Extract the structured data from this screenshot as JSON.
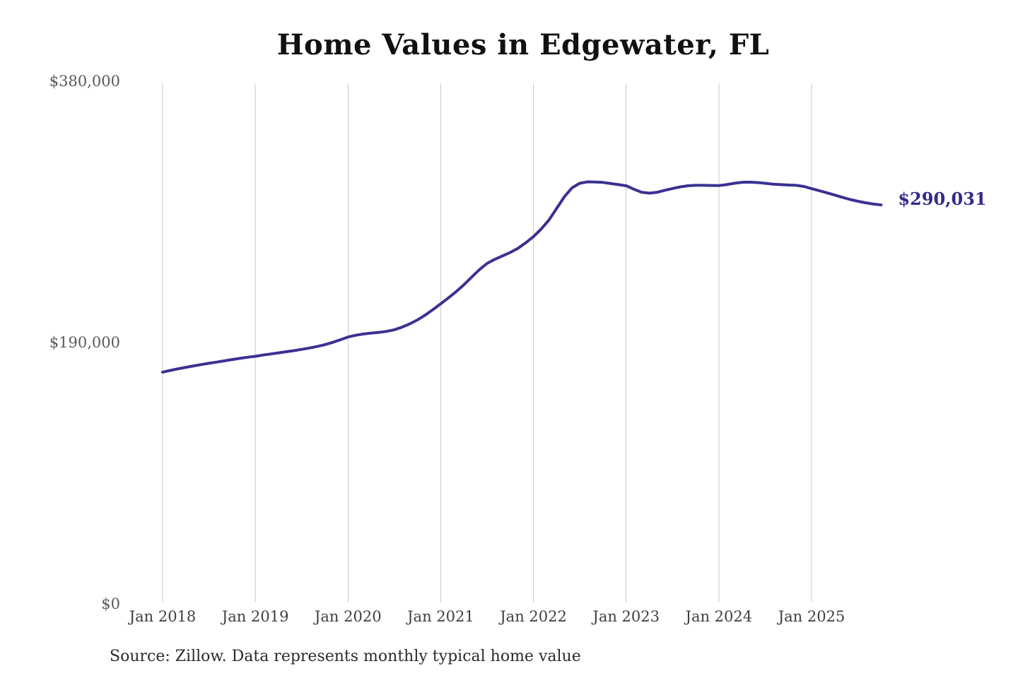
{
  "chart": {
    "title": "Home Values in Edgewater, FL",
    "source": "Source: Zillow. Data represents monthly typical home value",
    "end_label": "$290,031"
  },
  "chart_data": {
    "type": "line",
    "title": "Home Values in Edgewater, FL",
    "series_name": "Typical home value",
    "frequency": "monthly",
    "start_month": "2018-01",
    "end_month": "2025-10",
    "x_ticks": [
      "Jan 2018",
      "Jan 2019",
      "Jan 2020",
      "Jan 2021",
      "Jan 2022",
      "Jan 2023",
      "Jan 2024",
      "Jan 2025"
    ],
    "y_ticks": [
      {
        "label": "$0",
        "value": 0
      },
      {
        "label": "$190,000",
        "value": 190000
      },
      {
        "label": "$380,000",
        "value": 380000
      }
    ],
    "ylim": [
      0,
      380000
    ],
    "grid": "vertical-only",
    "legend": "none",
    "line_color": "#3a3191",
    "gridline_color": "#c9c9c9",
    "end_value": 290031,
    "end_value_label": "$290,031",
    "values": [
      168500,
      169700,
      170900,
      172000,
      173000,
      174000,
      174900,
      175800,
      176700,
      177600,
      178500,
      179300,
      180000,
      180900,
      181700,
      182500,
      183300,
      184100,
      185000,
      186000,
      187100,
      188400,
      190100,
      192000,
      194000,
      195300,
      196200,
      196900,
      197400,
      198100,
      199300,
      201200,
      203600,
      206500,
      210000,
      214000,
      218200,
      222500,
      227000,
      232000,
      237500,
      243000,
      247500,
      250500,
      253000,
      255500,
      258500,
      262500,
      267000,
      272500,
      279000,
      287500,
      296000,
      302500,
      305800,
      306800,
      306700,
      306400,
      305600,
      304800,
      304000,
      301500,
      299300,
      298600,
      299200,
      300700,
      302000,
      303200,
      304000,
      304300,
      304300,
      304200,
      304100,
      304800,
      305800,
      306500,
      306600,
      306300,
      305800,
      305200,
      304800,
      304500,
      304300,
      303500,
      301900,
      300400,
      298800,
      297200,
      295600,
      294000,
      292700,
      291600,
      290700,
      290031
    ]
  }
}
